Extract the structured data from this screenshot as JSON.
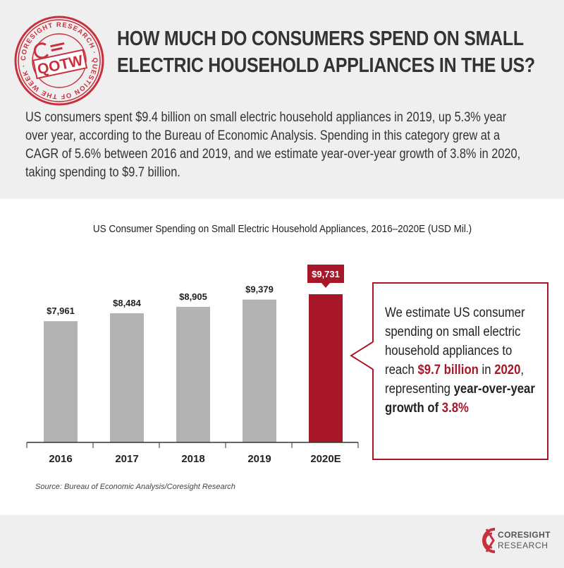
{
  "header": {
    "stamp": {
      "ring_text": "CORESIGHT RESEARCH · QUESTION OF THE WEEK ·",
      "badge": "QOTW",
      "color": "#c8303e"
    },
    "headline_line1": "HOW MUCH DO CONSUMERS SPEND ON SMALL",
    "headline_line2": "ELECTRIC HOUSEHOLD APPLIANCES IN THE US?"
  },
  "intro": {
    "lines": [
      "US consumers spent $9.4 billion on small electric household appliances in 2019, up 5.3% year",
      "over year, according to the Bureau of Economic Analysis. Spending in this category grew at a",
      "CAGR of 5.6% between 2016 and 2019, and we estimate year-over-year growth of 3.8% in 2020,",
      "taking spending to $9.7 billion."
    ]
  },
  "chart_data": {
    "type": "bar",
    "title": "US Consumer Spending on Small Electric Household Appliances, 2016–2020E (USD Mil.)",
    "categories": [
      "2016",
      "2017",
      "2018",
      "2019",
      "2020E"
    ],
    "values": [
      7961,
      8484,
      8905,
      9379,
      9731
    ],
    "value_labels": [
      "$7,961",
      "$8,484",
      "$8,905",
      "$9,379",
      "$9,731"
    ],
    "ylim": [
      0,
      9731
    ],
    "highlight_index": 4,
    "colors": {
      "bar": "#b3b3b3",
      "highlight": "#a8162a",
      "axis": "#333333"
    },
    "grid": false
  },
  "callout": {
    "line1": "We estimate US consumer",
    "line2": "spending on small electric",
    "line3": "household appliances to",
    "line4_pre": "reach ",
    "line4_amount": "$9.7 billion",
    "line4_mid": " in ",
    "line4_year": "2020",
    "line4_post": ",",
    "line5_pre": "representing ",
    "line5_bold": "year-over-year",
    "line6_bold": "growth of ",
    "line6_pct": "3.8%"
  },
  "source": "Source: Bureau of Economic Analysis/Coresight Research",
  "logo": {
    "line1": "CORESIGHT",
    "line2": "RESEARCH",
    "color": "#c8303e"
  }
}
